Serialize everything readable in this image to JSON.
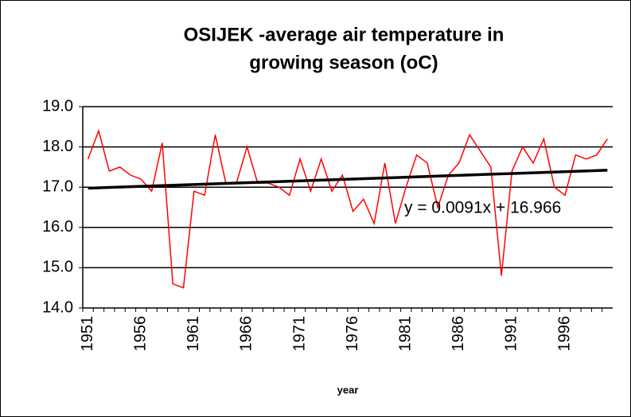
{
  "chart_data": {
    "type": "line",
    "title": [
      "OSIJEK  -average air temperature in",
      "growing season (oC)"
    ],
    "x_label": "year",
    "categories": [
      "1951",
      null,
      null,
      null,
      null,
      "1956",
      null,
      null,
      null,
      null,
      "1961",
      null,
      null,
      null,
      null,
      "1966",
      null,
      null,
      null,
      null,
      "1971",
      null,
      null,
      null,
      null,
      "1976",
      null,
      null,
      null,
      null,
      "1981",
      null,
      null,
      null,
      null,
      "1986",
      null,
      null,
      null,
      null,
      "1991",
      null,
      null,
      null,
      null,
      "1996",
      null,
      null,
      null,
      null
    ],
    "series": [
      {
        "color": "#ff0000",
        "values": [
          17.7,
          18.4,
          17.4,
          17.5,
          17.3,
          17.2,
          16.9,
          18.1,
          14.6,
          14.5,
          16.9,
          16.8,
          18.3,
          17.1,
          17.1,
          18.0,
          17.1,
          17.1,
          17.0,
          16.8,
          17.7,
          16.9,
          17.7,
          16.9,
          17.3,
          16.4,
          16.7,
          16.1,
          17.6,
          16.1,
          17.0,
          17.8,
          17.6,
          16.5,
          17.3,
          17.6,
          18.3,
          17.9,
          17.5,
          14.8,
          17.4,
          18.0,
          17.6,
          18.2,
          17.0,
          16.8,
          17.8,
          17.7,
          17.8,
          18.2
        ]
      }
    ],
    "trendline": {
      "slope": 0.0091,
      "intercept": 16.966,
      "label": "y = 0.0091x + 16.966",
      "color": "#000000"
    },
    "ylim": [
      14,
      19
    ],
    "yticks": [
      {
        "value": 14,
        "label": "14.0"
      },
      {
        "value": 15,
        "label": "15.0"
      },
      {
        "value": 16,
        "label": "16.0"
      },
      {
        "value": 17,
        "label": "17.0"
      },
      {
        "value": 18,
        "label": "18.0"
      },
      {
        "value": 19,
        "label": "19.0"
      }
    ],
    "grid": true
  }
}
